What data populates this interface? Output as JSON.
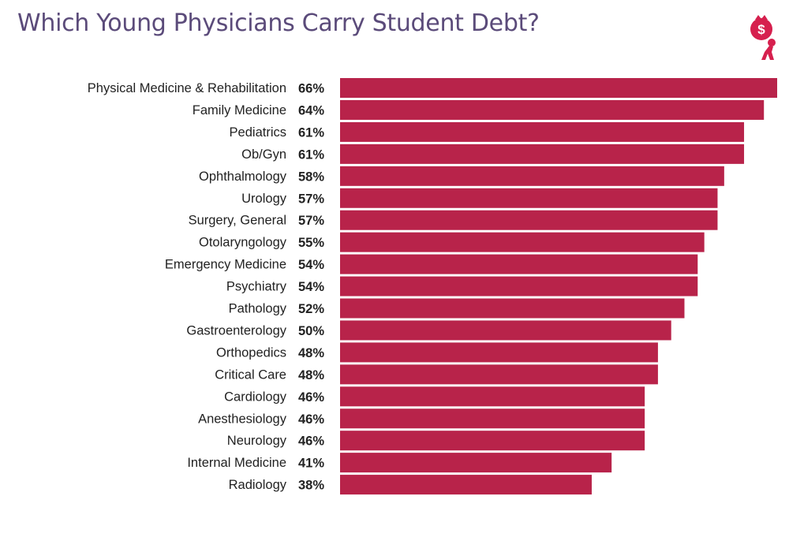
{
  "header": {
    "title": "Which Young Physicians Carry Student Debt?"
  },
  "logo": {
    "icon": "person-carrying-money-bag-icon",
    "glyph": "$",
    "color": "#d6204e"
  },
  "colors": {
    "bar": "#b8234a",
    "title": "#5b4b7a",
    "text": "#222222"
  },
  "chart_data": {
    "type": "bar",
    "orientation": "horizontal",
    "title": "Which Young Physicians Carry Student Debt?",
    "xlabel": "",
    "ylabel": "",
    "value_suffix": "%",
    "xlim": [
      0,
      66
    ],
    "grid": false,
    "legend": "none",
    "categories": [
      "Physical Medicine & Rehabilitation",
      "Family Medicine",
      "Pediatrics",
      "Ob/Gyn",
      "Ophthalmology",
      "Urology",
      "Surgery, General",
      "Otolaryngology",
      "Emergency Medicine",
      "Psychiatry",
      "Pathology",
      "Gastroenterology",
      "Orthopedics",
      "Critical Care",
      "Cardiology",
      "Anesthesiology",
      "Neurology",
      "Internal Medicine",
      "Radiology"
    ],
    "values": [
      66,
      64,
      61,
      61,
      58,
      57,
      57,
      55,
      54,
      54,
      52,
      50,
      48,
      48,
      46,
      46,
      46,
      41,
      38
    ],
    "value_labels": [
      "66%",
      "64%",
      "61%",
      "61%",
      "58%",
      "57%",
      "57%",
      "55%",
      "54%",
      "54%",
      "52%",
      "50%",
      "48%",
      "48%",
      "46%",
      "46%",
      "46%",
      "41%",
      "38%"
    ]
  }
}
